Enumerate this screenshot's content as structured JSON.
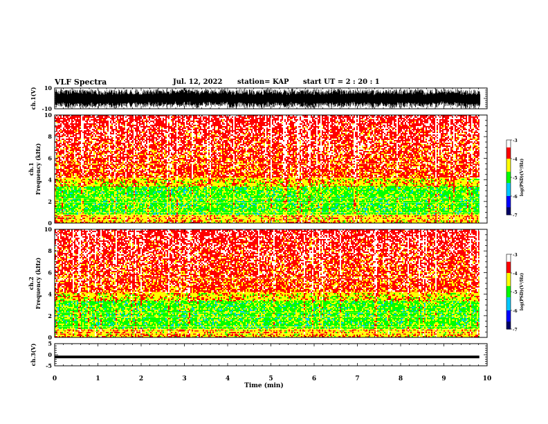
{
  "header": {
    "title": "VLF Spectra",
    "date": "Jul. 12, 2022",
    "station": "station= KAP",
    "start": "start  UT  =  2 : 20 : 1"
  },
  "colors": {
    "ink": "#000000",
    "colormap": [
      "#000066",
      "#0000ff",
      "#00c8ff",
      "#00ff00",
      "#ffff00",
      "#ff0000",
      "#ffffff"
    ]
  },
  "chart_data": [
    {
      "type": "line",
      "name": "ch1-waveform",
      "ylabel": "ch.1(V)",
      "ylim": [
        -10,
        10
      ],
      "yticks": [
        "10",
        "-10"
      ],
      "xlim": [
        0,
        10
      ],
      "description_values": {
        "amplitude_approx": [
          -9,
          9
        ]
      }
    },
    {
      "type": "heatmap",
      "name": "ch1-spectrogram",
      "ylabel": "ch.1\nFrequency (kHz)",
      "ylim": [
        0,
        10
      ],
      "yticks": [
        "0",
        "2",
        "4",
        "6",
        "8",
        "10"
      ],
      "xlim": [
        0,
        9.82
      ],
      "colorbar": {
        "label": "log(PSD)(V²/Hz)",
        "range": [
          -7,
          -3
        ],
        "ticks": [
          "-3",
          "-4",
          "-5",
          "-6",
          "-7"
        ]
      },
      "bands": [
        {
          "f_kHz": [
            0,
            0.8
          ],
          "level": -4.2
        },
        {
          "f_kHz": [
            0.8,
            3.4
          ],
          "level": -4.9
        },
        {
          "f_kHz": [
            3.4,
            4.2
          ],
          "level": -4.3
        },
        {
          "f_kHz": [
            4.2,
            10
          ],
          "level": -3.8
        }
      ]
    },
    {
      "type": "heatmap",
      "name": "ch2-spectrogram",
      "ylabel": "ch.2\nFrequency (kHz)",
      "ylim": [
        0,
        10
      ],
      "yticks": [
        "0",
        "2",
        "4",
        "6",
        "8",
        "10"
      ],
      "xlim": [
        0,
        9.82
      ],
      "colorbar": {
        "label": "log(PSD)(V²/Hz)",
        "range": [
          -7,
          -3
        ],
        "ticks": [
          "-3",
          "-4",
          "-5",
          "-6",
          "-7"
        ]
      },
      "bands": [
        {
          "f_kHz": [
            0,
            0.8
          ],
          "level": -4.2
        },
        {
          "f_kHz": [
            0.8,
            3.4
          ],
          "level": -4.9
        },
        {
          "f_kHz": [
            3.4,
            4.2
          ],
          "level": -4.3
        },
        {
          "f_kHz": [
            4.2,
            10
          ],
          "level": -3.8
        }
      ]
    },
    {
      "type": "line",
      "name": "ch3-waveform",
      "ylabel": "ch.3(V)",
      "ylim": [
        -5,
        5
      ],
      "yticks": [
        "5",
        "0",
        "-5"
      ],
      "xlim": [
        0,
        10
      ],
      "xlabel": "Time (min)",
      "xticks": [
        "0",
        "1",
        "2",
        "3",
        "4",
        "5",
        "6",
        "7",
        "8",
        "9",
        "10"
      ],
      "description_values": {
        "level_approx": [
          -1.5,
          -0.5
        ]
      }
    }
  ]
}
